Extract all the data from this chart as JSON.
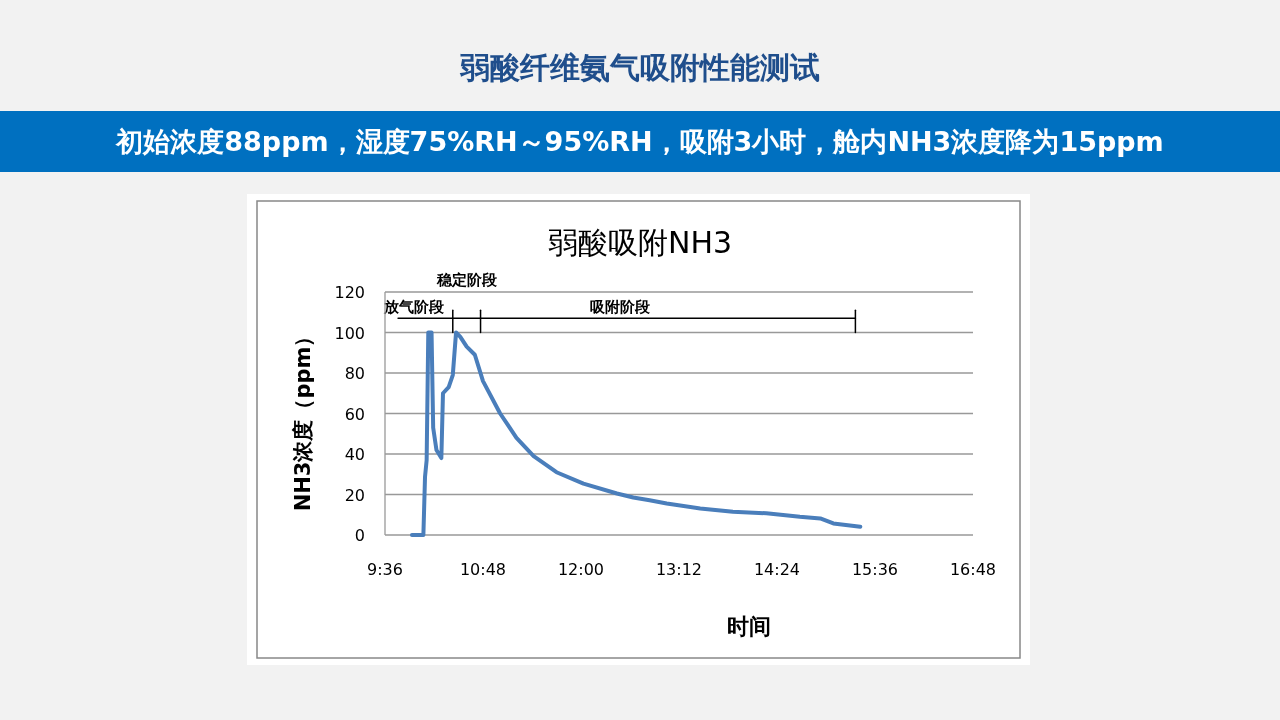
{
  "chart_data": {
    "type": "line",
    "title": "弱酸纤维氨气吸附性能测试",
    "subtitle": "初始浓度88ppm，湿度75%RH～95%RH，吸附3小时，舱内NH3浓度降为15ppm",
    "annotations": [
      "弱酸吸附NH3",
      {
        "text": "放气阶段",
        "x": 9.96,
        "y": 107
      },
      {
        "text": "稳定阶段",
        "x": 10.6,
        "y": 107
      },
      {
        "text": "吸附阶段",
        "x": 12.48,
        "y": 107
      }
    ],
    "xlabel": "时间",
    "ylabel": "NH3浓度（ppm）",
    "xlim": [
      9.6,
      16.8
    ],
    "xticks": [
      {
        "value": 9.6,
        "label": "9:36"
      },
      {
        "value": 10.8,
        "label": "10:48"
      },
      {
        "value": 12,
        "label": "12:00"
      },
      {
        "value": 13.2,
        "label": "13:12"
      },
      {
        "value": 14.4,
        "label": "14:24"
      },
      {
        "value": 15.6,
        "label": "15:36"
      },
      {
        "value": 16.8,
        "label": "16:48"
      }
    ],
    "ylim": [
      0,
      120
    ],
    "yticks": [
      0,
      20,
      40,
      60,
      80,
      100,
      120
    ],
    "grid": "y",
    "marker": "none",
    "line_style": "solid",
    "series": [
      {
        "type": "line",
        "color": "#000000",
        "x": [
          9.76,
          15.36
        ],
        "values": [
          107,
          107
        ]
      },
      {
        "type": "line",
        "color": "#000000",
        "x": [
          10.43,
          10.43
        ],
        "values": [
          111,
          100
        ]
      },
      {
        "type": "line",
        "color": "#000000",
        "x": [
          10.77,
          10.77
        ],
        "values": [
          111,
          100
        ]
      },
      {
        "type": "line",
        "color": "#000000",
        "x": [
          15.36,
          15.36
        ],
        "values": [
          111,
          100
        ]
      },
      {
        "color": "#4a7ebb",
        "x": [
          9.93,
          10.07,
          10.09,
          10.11,
          10.13,
          10.17,
          10.19,
          10.23,
          10.29,
          10.31,
          10.38,
          10.43,
          10.47,
          10.52,
          10.6,
          10.7,
          10.8,
          11.01,
          11.21,
          11.42,
          11.7,
          12.03,
          12.44,
          12.64,
          12.84,
          13.05,
          13.46,
          13.86,
          14.27,
          14.68,
          14.93,
          15.09,
          15.42
        ],
        "values": [
          0,
          0,
          28.7,
          37,
          100,
          100,
          53,
          42,
          38,
          70,
          73,
          79,
          100,
          98,
          93,
          89,
          76,
          60,
          48,
          39,
          31,
          25.4,
          20.5,
          18.5,
          17.2,
          15.6,
          13.1,
          11.5,
          10.7,
          9,
          8.2,
          5.7,
          4.1
        ]
      }
    ]
  }
}
